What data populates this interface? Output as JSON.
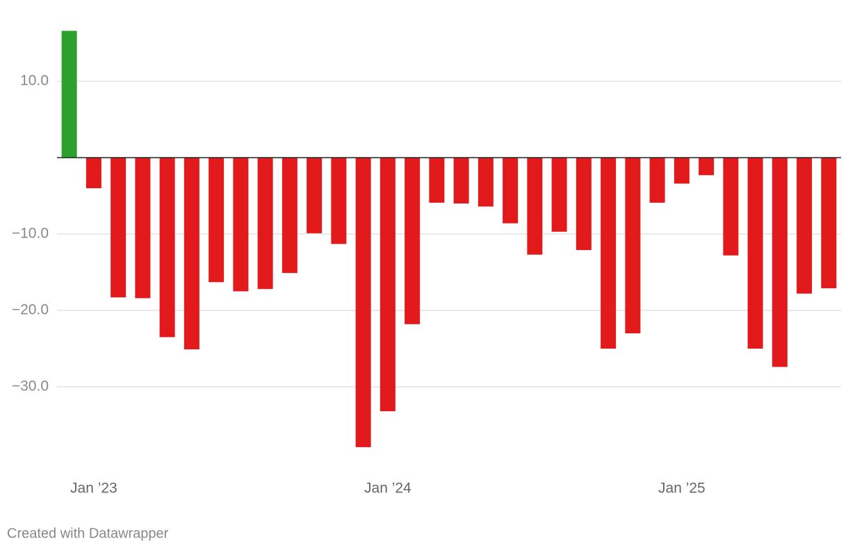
{
  "chart_data": {
    "type": "bar",
    "categories": [
      null,
      "Jan ’23",
      null,
      null,
      null,
      null,
      null,
      null,
      null,
      null,
      null,
      null,
      null,
      "Jan ’24",
      null,
      null,
      null,
      null,
      null,
      null,
      null,
      null,
      null,
      null,
      null,
      "Jan ’25",
      null,
      null,
      null,
      null,
      null,
      null
    ],
    "values": [
      16.6,
      -4.0,
      -18.3,
      -18.4,
      -23.5,
      -25.1,
      -16.3,
      -17.5,
      -17.2,
      -15.1,
      -9.9,
      -11.3,
      -37.9,
      -33.2,
      -21.8,
      -5.9,
      -6.0,
      -6.4,
      -8.6,
      -12.7,
      -9.7,
      -12.1,
      -25.0,
      -23.0,
      -5.9,
      -3.4,
      -2.3,
      -12.8,
      -25.0,
      -27.4,
      -17.8,
      -17.1
    ],
    "positive_color": "#2ca02c",
    "negative_color": "#e31a1c",
    "ylim": [
      -38,
      17
    ],
    "yticks": [
      {
        "value": 10,
        "label": "10.0"
      },
      {
        "value": -10,
        "label": "−10.0"
      },
      {
        "value": -20,
        "label": "−20.0"
      },
      {
        "value": -30,
        "label": "−30.0"
      }
    ],
    "grid": true,
    "footer": "Created with Datawrapper"
  }
}
